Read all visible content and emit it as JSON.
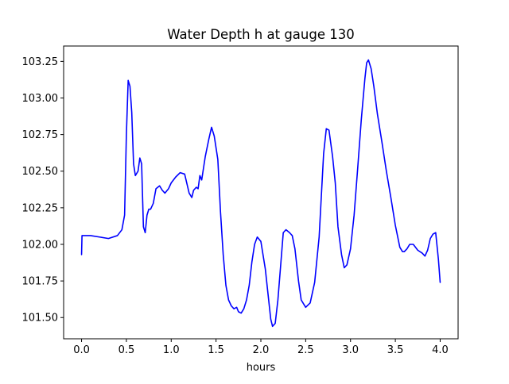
{
  "chart_data": {
    "type": "line",
    "title": "Water Depth h at gauge 130",
    "xlabel": "hours",
    "ylabel": "",
    "xlim": [
      -0.2,
      4.2
    ],
    "ylim": [
      101.355,
      103.355
    ],
    "xticks": [
      0.0,
      0.5,
      1.0,
      1.5,
      2.0,
      2.5,
      3.0,
      3.5,
      4.0
    ],
    "xtick_labels": [
      "0.0",
      "0.5",
      "1.0",
      "1.5",
      "2.0",
      "2.5",
      "3.0",
      "3.5",
      "4.0"
    ],
    "yticks": [
      101.5,
      101.75,
      102.0,
      102.25,
      102.5,
      102.75,
      103.0,
      103.25
    ],
    "ytick_labels": [
      "101.50",
      "101.75",
      "102.00",
      "102.25",
      "102.50",
      "102.75",
      "103.00",
      "103.25"
    ],
    "grid": false,
    "legend": "none",
    "series": [
      {
        "color": "#0000ff",
        "x": [
          0.0,
          0.005,
          0.1,
          0.2,
          0.3,
          0.4,
          0.45,
          0.48,
          0.5,
          0.52,
          0.54,
          0.56,
          0.58,
          0.6,
          0.63,
          0.65,
          0.67,
          0.69,
          0.71,
          0.73,
          0.75,
          0.77,
          0.8,
          0.83,
          0.87,
          0.9,
          0.93,
          0.97,
          1.0,
          1.05,
          1.1,
          1.15,
          1.2,
          1.23,
          1.25,
          1.28,
          1.3,
          1.32,
          1.34,
          1.36,
          1.38,
          1.42,
          1.45,
          1.48,
          1.52,
          1.55,
          1.58,
          1.61,
          1.64,
          1.67,
          1.7,
          1.73,
          1.75,
          1.78,
          1.81,
          1.84,
          1.87,
          1.9,
          1.93,
          1.96,
          2.0,
          2.05,
          2.08,
          2.11,
          2.13,
          2.16,
          2.19,
          2.22,
          2.25,
          2.28,
          2.3,
          2.32,
          2.35,
          2.38,
          2.42,
          2.45,
          2.5,
          2.55,
          2.6,
          2.65,
          2.7,
          2.73,
          2.76,
          2.8,
          2.83,
          2.86,
          2.9,
          2.93,
          2.96,
          3.0,
          3.04,
          3.08,
          3.12,
          3.16,
          3.18,
          3.2,
          3.23,
          3.26,
          3.3,
          3.35,
          3.4,
          3.45,
          3.5,
          3.55,
          3.58,
          3.6,
          3.63,
          3.66,
          3.7,
          3.75,
          3.8,
          3.83,
          3.86,
          3.89,
          3.92,
          3.95,
          3.98,
          4.0
        ],
        "y": [
          101.93,
          102.06,
          102.06,
          102.05,
          102.04,
          102.06,
          102.1,
          102.2,
          102.75,
          103.12,
          103.08,
          102.9,
          102.55,
          102.47,
          102.5,
          102.59,
          102.55,
          102.12,
          102.08,
          102.2,
          102.24,
          102.24,
          102.28,
          102.38,
          102.4,
          102.37,
          102.35,
          102.38,
          102.42,
          102.46,
          102.49,
          102.48,
          102.35,
          102.32,
          102.37,
          102.39,
          102.38,
          102.47,
          102.44,
          102.52,
          102.6,
          102.72,
          102.8,
          102.74,
          102.58,
          102.22,
          101.93,
          101.72,
          101.62,
          101.58,
          101.56,
          101.57,
          101.54,
          101.53,
          101.56,
          101.62,
          101.72,
          101.88,
          102.0,
          102.05,
          102.02,
          101.83,
          101.66,
          101.49,
          101.44,
          101.46,
          101.62,
          101.85,
          102.08,
          102.1,
          102.09,
          102.08,
          102.06,
          101.97,
          101.75,
          101.62,
          101.57,
          101.6,
          101.74,
          102.05,
          102.62,
          102.79,
          102.78,
          102.6,
          102.42,
          102.12,
          101.93,
          101.84,
          101.86,
          101.97,
          102.2,
          102.52,
          102.85,
          103.13,
          103.24,
          103.26,
          103.2,
          103.08,
          102.89,
          102.7,
          102.5,
          102.32,
          102.13,
          101.98,
          101.95,
          101.95,
          101.97,
          102.0,
          102.0,
          101.96,
          101.94,
          101.92,
          101.96,
          102.04,
          102.07,
          102.08,
          101.9,
          101.74
        ]
      }
    ]
  }
}
